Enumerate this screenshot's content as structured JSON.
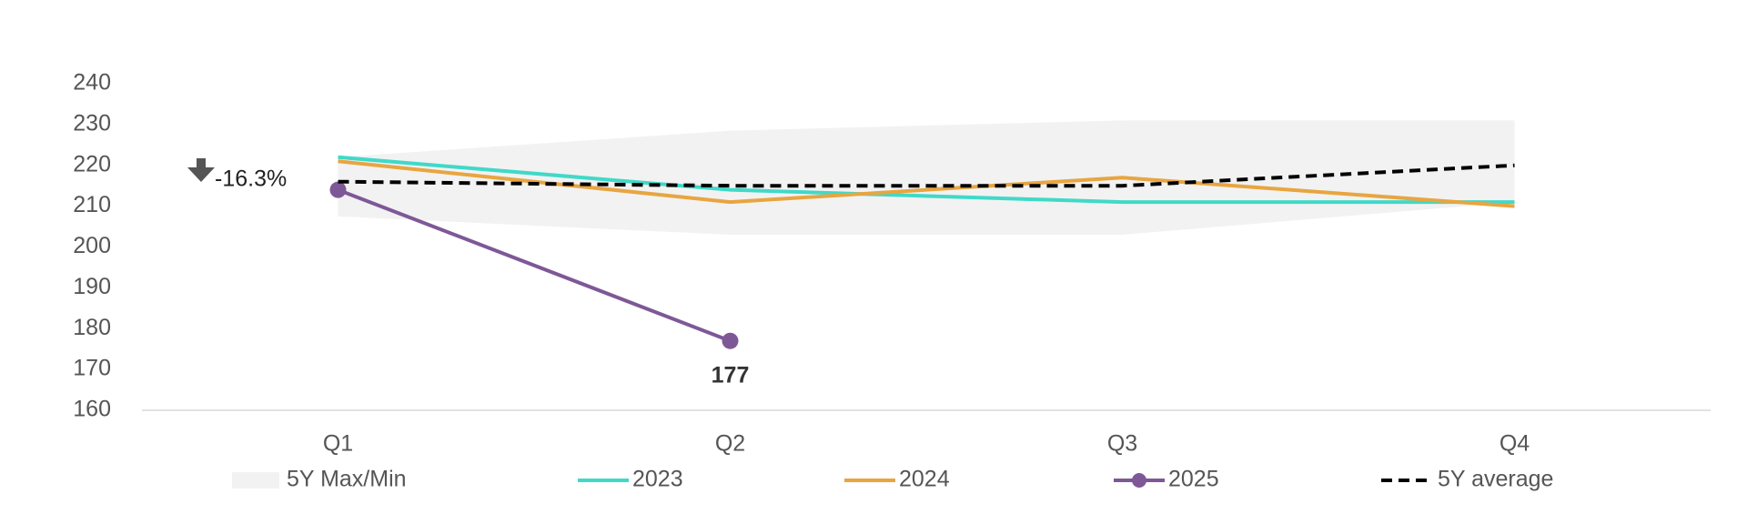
{
  "chart_data": {
    "type": "line",
    "categories": [
      "Q1",
      "Q2",
      "Q3",
      "Q4"
    ],
    "ylim": [
      160,
      240
    ],
    "yticks": [
      160,
      170,
      180,
      190,
      200,
      210,
      220,
      230,
      240
    ],
    "grid": false,
    "annotation": "-16.3%",
    "series": [
      {
        "name": "5Y Max/Min",
        "color": "#f2f2f2",
        "type": "band",
        "max": [
          222,
          228.5,
          231,
          231
        ],
        "min": [
          207.5,
          203,
          203,
          211
        ]
      },
      {
        "name": "2023",
        "color": "#40d9c8",
        "type": "line",
        "values": [
          222,
          214,
          211,
          211
        ]
      },
      {
        "name": "2024",
        "color": "#e8a540",
        "type": "line",
        "values": [
          221,
          211,
          217,
          210
        ]
      },
      {
        "name": "2025",
        "color": "#7e5896",
        "type": "line",
        "markers": true,
        "values": [
          214,
          177,
          null,
          null
        ],
        "value_labels": [
          null,
          "177"
        ]
      },
      {
        "name": "5Y average",
        "color": "#000000",
        "type": "line",
        "dash": true,
        "values": [
          216,
          215,
          215,
          220
        ]
      }
    ]
  }
}
